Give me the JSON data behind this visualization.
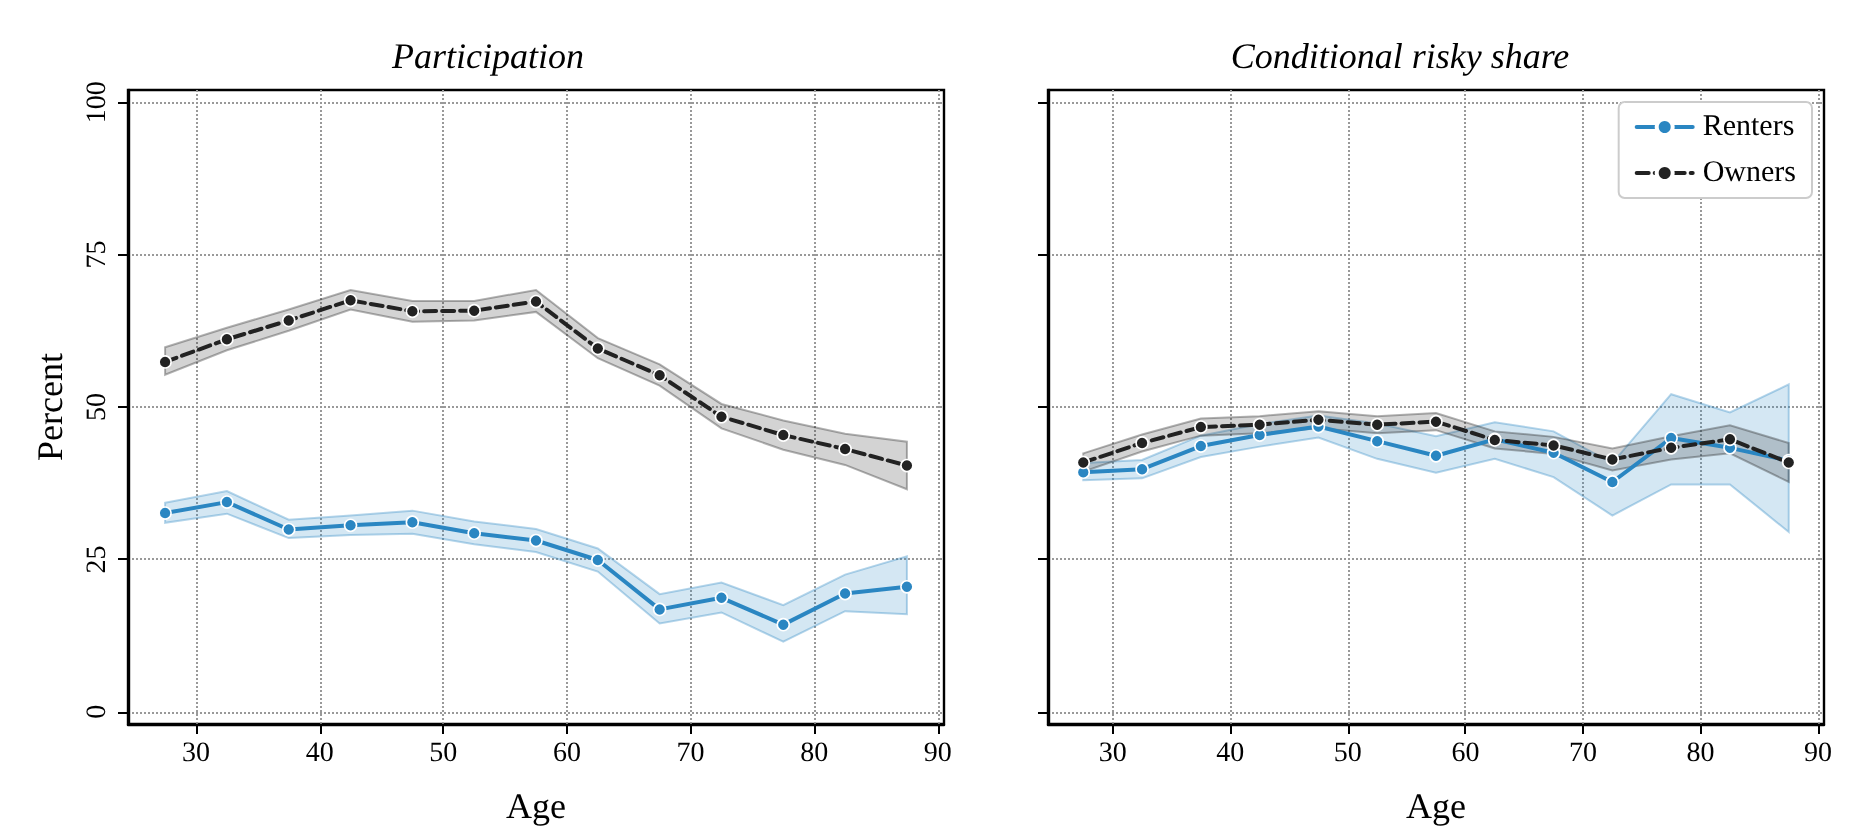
{
  "chart_data": [
    {
      "type": "line",
      "title": "Participation",
      "xlabel": "Age",
      "ylabel": "Percent",
      "x": [
        27.5,
        32.5,
        37.5,
        42.5,
        47.5,
        52.5,
        57.5,
        62.5,
        67.5,
        72.5,
        77.5,
        82.5,
        87.5
      ],
      "xlim": [
        24.5,
        90.5
      ],
      "xticks": [
        30,
        40,
        50,
        60,
        70,
        80,
        90
      ],
      "ylim": [
        -2,
        102
      ],
      "yticks": [
        0,
        25,
        50,
        75,
        100
      ],
      "grid": true,
      "legend": false,
      "marker": "circle",
      "series": [
        {
          "color": "#2a86c2",
          "line_style": "solid",
          "values": [
            32.6,
            34.4,
            29.9,
            30.6,
            31.1,
            29.3,
            28.1,
            24.9,
            16.8,
            18.7,
            14.3,
            19.4,
            20.5
          ],
          "lower": [
            31,
            32.5,
            28.5,
            29,
            29.2,
            27.5,
            26.2,
            23,
            14.5,
            16.3,
            11.5,
            16.5,
            16
          ],
          "upper": [
            34.3,
            36.2,
            31.5,
            32.2,
            33,
            31.2,
            30,
            26.8,
            19.3,
            21.2,
            17.5,
            22.5,
            25.5
          ]
        },
        {
          "color": "#222222",
          "line_style": "dashed",
          "values": [
            57.4,
            61.1,
            64.2,
            67.5,
            65.7,
            65.8,
            67.3,
            59.6,
            55.2,
            48.4,
            45.4,
            43.1,
            40.4
          ],
          "lower": [
            55.3,
            59.3,
            62.5,
            66,
            64,
            64.2,
            65.6,
            58,
            53.5,
            46.5,
            43,
            40.5,
            36.5
          ],
          "upper": [
            59.8,
            63,
            66,
            69.2,
            67.4,
            67.4,
            69.2,
            61.3,
            57,
            50.5,
            47.8,
            45.6,
            44.3
          ]
        }
      ]
    },
    {
      "type": "line",
      "title": "Conditional risky share",
      "xlabel": "Age",
      "x": [
        27.5,
        32.5,
        37.5,
        42.5,
        47.5,
        52.5,
        57.5,
        62.5,
        67.5,
        72.5,
        77.5,
        82.5,
        87.5
      ],
      "xlim": [
        24.5,
        90.5
      ],
      "xticks": [
        30,
        40,
        50,
        60,
        70,
        80,
        90
      ],
      "ylim": [
        -2,
        102
      ],
      "yticks": [
        0,
        25,
        50,
        75,
        100
      ],
      "tick_labels": "x",
      "grid": true,
      "legend": "top right",
      "marker": "circle",
      "series": [
        {
          "name": "Renters",
          "color": "#2a86c2",
          "line_style": "solid",
          "values": [
            39.3,
            39.8,
            43.6,
            45.4,
            46.8,
            44.4,
            42.0,
            44.7,
            42.5,
            37.7,
            44.9,
            43.3,
            41.2
          ],
          "lower": [
            38,
            38.3,
            41.8,
            43.5,
            45,
            41.5,
            39.2,
            41.5,
            38.5,
            32.2,
            37.3,
            37.3,
            29.5
          ],
          "upper": [
            40.8,
            41.3,
            45.3,
            47.2,
            48.6,
            47.3,
            45.2,
            47.5,
            46,
            40.8,
            52.1,
            49.1,
            53.7
          ]
        },
        {
          "name": "Owners",
          "color": "#222222",
          "line_style": "dashed",
          "values": [
            40.9,
            44.1,
            46.7,
            47.1,
            47.9,
            47.1,
            47.6,
            44.6,
            43.7,
            41.4,
            43.3,
            44.7,
            40.9
          ],
          "lower": [
            39.4,
            42.7,
            45.3,
            45.7,
            46.5,
            45.7,
            46.2,
            43.2,
            42.3,
            39.6,
            41.4,
            42.4,
            37.7
          ],
          "upper": [
            42.4,
            45.5,
            48.1,
            48.5,
            49.3,
            48.5,
            49,
            46,
            45.1,
            43.2,
            45.2,
            47,
            44.1
          ]
        }
      ]
    }
  ]
}
